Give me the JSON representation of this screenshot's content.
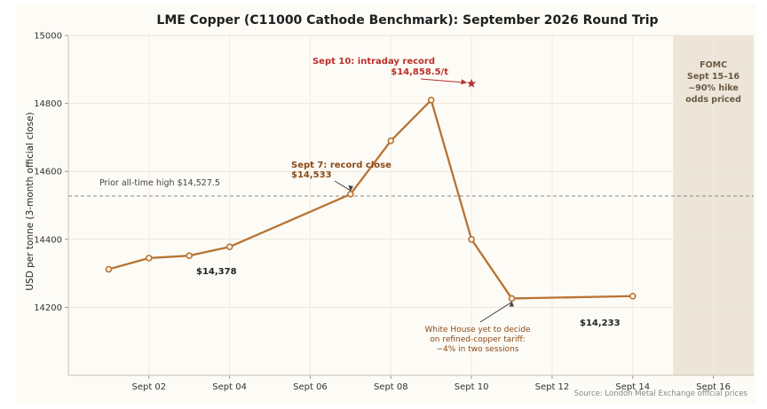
{
  "chart_data": {
    "type": "line",
    "title": "LME Copper (C11000 Cathode Benchmark): September 2026 Round Trip",
    "ylabel": "USD per tonne (3-month official close)",
    "xlabel": "",
    "ylim": [
      14000,
      15000
    ],
    "xlim": [
      0,
      17
    ],
    "y_ticks": [
      14200,
      14400,
      14600,
      14800,
      15000
    ],
    "x_ticks": [
      {
        "day": 2,
        "label": "Sept 02"
      },
      {
        "day": 4,
        "label": "Sept 04"
      },
      {
        "day": 6,
        "label": "Sept 06"
      },
      {
        "day": 8,
        "label": "Sept 08"
      },
      {
        "day": 10,
        "label": "Sept 10"
      },
      {
        "day": 12,
        "label": "Sept 12"
      },
      {
        "day": 14,
        "label": "Sept 14"
      },
      {
        "day": 16,
        "label": "Sept 16"
      }
    ],
    "grid": true,
    "series": [
      {
        "color": "#b87333",
        "points": [
          {
            "day": 1,
            "value": 14312
          },
          {
            "day": 2,
            "value": 14345
          },
          {
            "day": 3,
            "value": 14352
          },
          {
            "day": 4,
            "value": 14378
          },
          {
            "day": 7,
            "value": 14533
          },
          {
            "day": 8,
            "value": 14690
          },
          {
            "day": 9,
            "value": 14810
          },
          {
            "day": 10,
            "value": 14400
          },
          {
            "day": 11,
            "value": 14226
          },
          {
            "day": 14,
            "value": 14233
          }
        ]
      }
    ],
    "reference_line": {
      "value": 14527.5,
      "label": "Prior all-time high  $14,527.5",
      "color": "#888888"
    },
    "shaded_region": {
      "from_day": 15,
      "to_day": 17,
      "color": "#ece5d8",
      "label_lines": [
        "FOMC",
        "Sept 15–16",
        "~90% hike",
        "odds priced"
      ]
    },
    "intraday_record": {
      "day": 10,
      "value": 14858.5,
      "color": "#b8312a"
    },
    "annotations": {
      "intraday_line1": "Sept 10: intraday record",
      "intraday_line2": "$14,858.5/t",
      "record_close_line1": "Sept 7: record close",
      "record_close_line2": "$14,533",
      "low_label": "$14,378",
      "end_label": "$14,233",
      "tariff_lines": [
        "White House yet to decide",
        "on refined-copper tariff:",
        "−4% in two sessions"
      ]
    },
    "source": "Source: London Metal Exchange official prices"
  }
}
